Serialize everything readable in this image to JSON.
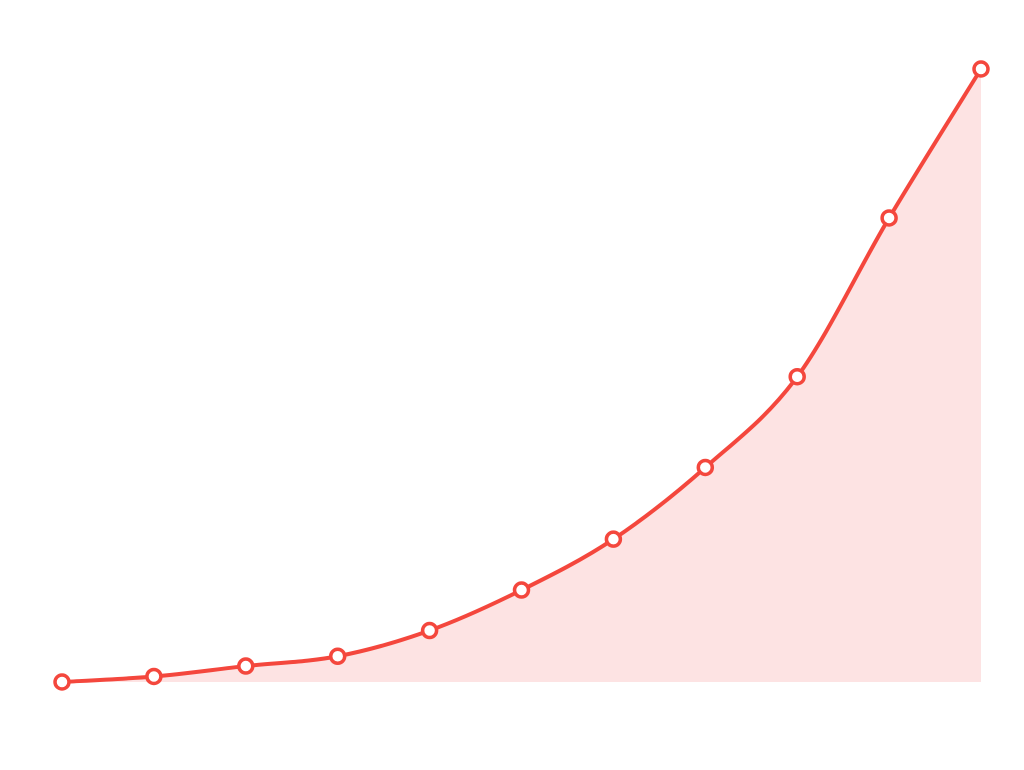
{
  "chart_data": {
    "type": "area",
    "title": "",
    "xlabel": "",
    "ylabel": "",
    "x": [
      0,
      1,
      2,
      3,
      4,
      5,
      6,
      7,
      8,
      9,
      10
    ],
    "series": [
      {
        "values": [
          0.0,
          0.9,
          2.6,
          4.2,
          8.4,
          15.0,
          23.3,
          35.0,
          49.8,
          75.7,
          100.0
        ]
      }
    ],
    "ylim": [
      0,
      100
    ],
    "grid": false,
    "legend": "none",
    "colors": {
      "line": "#f4473d",
      "fill": "#fde3e3",
      "marker_fill": "#ffffff"
    }
  }
}
